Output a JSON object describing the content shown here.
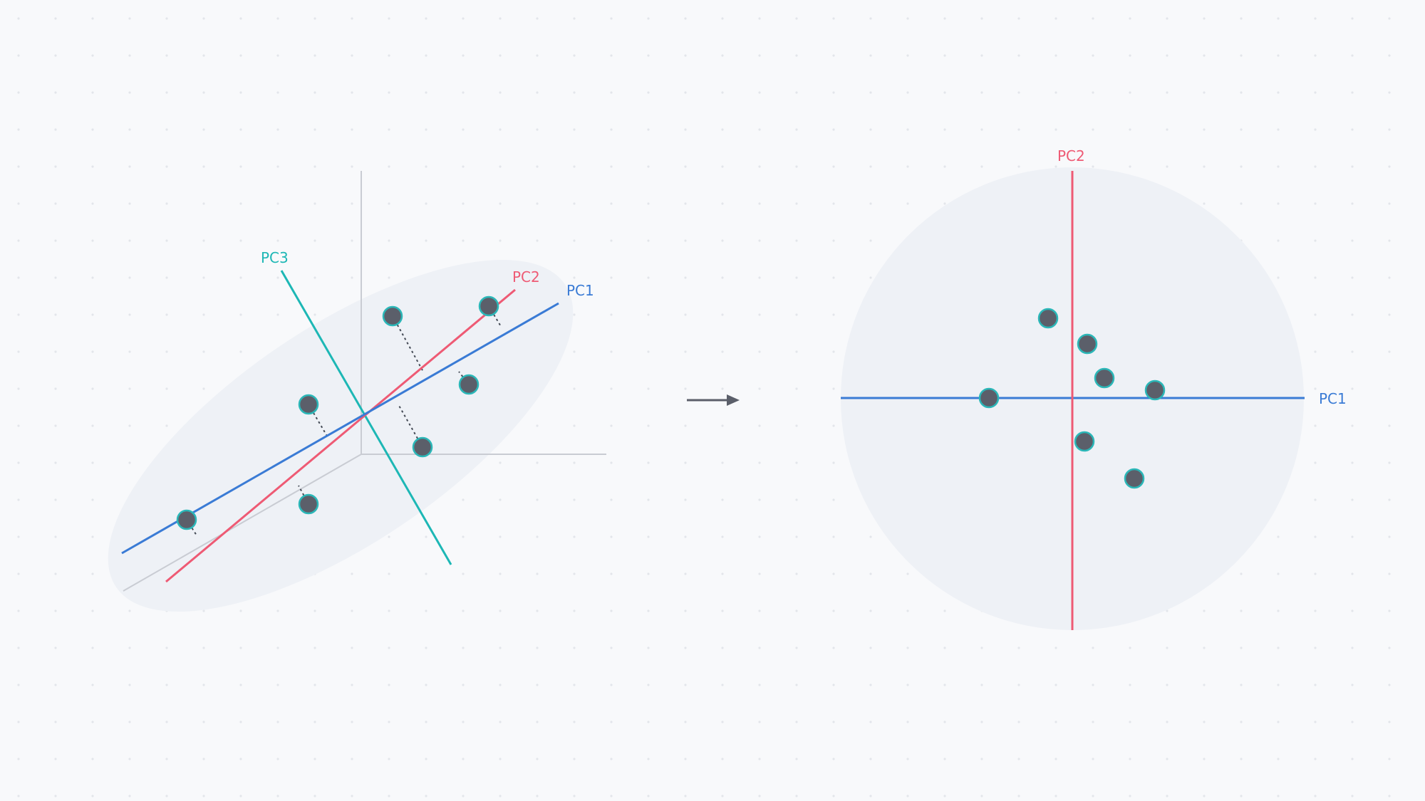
{
  "colors": {
    "background": "#f8f9fb",
    "grid_dot": "#e3e6eb",
    "region_fill": "#eef1f6",
    "pc1": "#3a7bd5",
    "pc2": "#ee5a74",
    "pc3": "#1db7b5",
    "orig_axis": "#c9ccd3",
    "point_fill": "#5b5f6a",
    "point_stroke": "#2bb7b8",
    "projection_line": "#444a55",
    "arrow": "#5b5f6a"
  },
  "left_diagram": {
    "labels": {
      "pc1": "PC1",
      "pc2": "PC2",
      "pc3": "PC3"
    }
  },
  "transform_arrow": {
    "icon": "right-arrow-icon"
  },
  "right_diagram": {
    "labels": {
      "pc1": "PC1",
      "pc2": "PC2"
    }
  }
}
